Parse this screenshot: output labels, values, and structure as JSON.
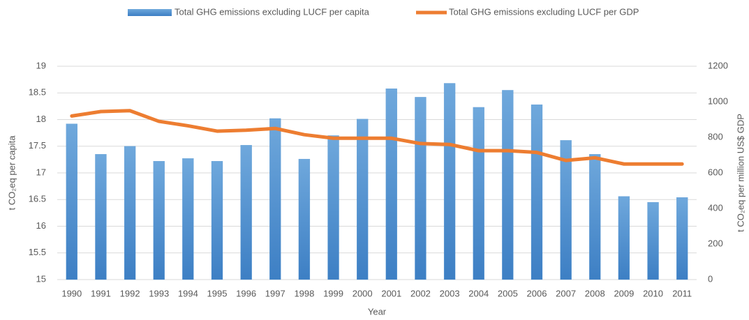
{
  "chart_data": {
    "type": "bar_line",
    "x_label": "Year",
    "y_label": "t CO₂eq per capita",
    "y2_label": "t CO₂eq per million US$ GDP",
    "categories": [
      "1990",
      "1991",
      "1992",
      "1993",
      "1994",
      "1995",
      "1996",
      "1997",
      "1998",
      "1999",
      "2000",
      "2001",
      "2002",
      "2003",
      "2004",
      "2005",
      "2006",
      "2007",
      "2008",
      "2009",
      "2010",
      "2011"
    ],
    "series": [
      {
        "name": "Total GHG emissions excluding LUCF per capita",
        "type": "bar",
        "color": "#5b9bd5",
        "values": [
          17.92,
          17.35,
          17.5,
          17.22,
          17.27,
          17.22,
          17.52,
          18.02,
          17.26,
          17.7,
          18.01,
          18.58,
          18.42,
          18.68,
          18.23,
          18.55,
          18.28,
          17.61,
          17.35,
          16.56,
          16.45,
          16.54
        ]
      },
      {
        "name": "Total GHG emissions excluding LUCF per GDP",
        "type": "line",
        "axis": "y2",
        "color": "#ed7d31",
        "values": [
          920,
          945,
          950,
          890,
          865,
          835,
          840,
          850,
          815,
          795,
          795,
          795,
          765,
          760,
          725,
          725,
          715,
          670,
          685,
          650,
          650,
          650
        ]
      }
    ],
    "ylim": [
      15,
      19
    ],
    "yticks": [
      15,
      15.5,
      16,
      16.5,
      17,
      17.5,
      18,
      18.5,
      19
    ],
    "y2lim": [
      0,
      1200
    ],
    "y2ticks": [
      0,
      200,
      400,
      600,
      800,
      1000,
      1200
    ],
    "grid": true,
    "legend": "top"
  }
}
